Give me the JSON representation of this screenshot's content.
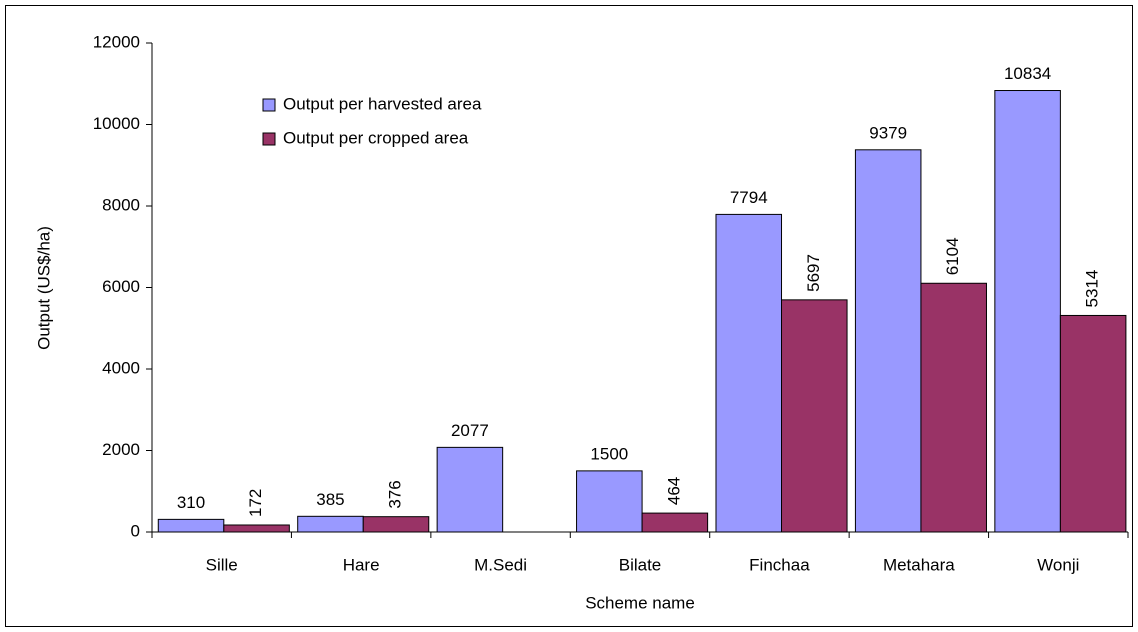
{
  "chart_data": {
    "type": "bar",
    "categories": [
      "Sille",
      "Hare",
      "M.Sedi",
      "Bilate",
      "Finchaa",
      "Metahara",
      "Wonji"
    ],
    "series": [
      {
        "name": "Output per harvested area",
        "color": "#9999ff",
        "values": [
          310,
          385,
          2077,
          1500,
          7794,
          9379,
          10834
        ]
      },
      {
        "name": "Output per cropped area",
        "color": "#993366",
        "values": [
          172,
          376,
          null,
          464,
          5697,
          6104,
          5314
        ]
      }
    ],
    "ylim": [
      0,
      12000
    ],
    "yticks": [
      0,
      2000,
      4000,
      6000,
      8000,
      10000,
      12000
    ],
    "ylabel": "Output (US$/ha)",
    "xlabel": "Scheme name",
    "grid": false,
    "legend": "upper left"
  }
}
